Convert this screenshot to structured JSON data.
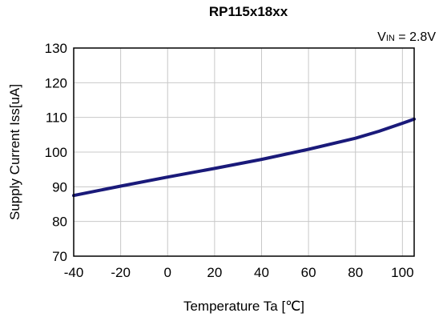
{
  "chart_data": {
    "type": "line",
    "title": "RP115x18xx",
    "condition": {
      "prefix": "V",
      "sub": "IN",
      "rest": " = 2.8V"
    },
    "xlabel": "Temperature Ta [℃]",
    "ylabel": "Supply Current Iss[uA]",
    "xlim": [
      -40,
      105
    ],
    "ylim": [
      70,
      130
    ],
    "xticks": [
      -40,
      -20,
      0,
      20,
      40,
      60,
      80,
      100
    ],
    "yticks": [
      70,
      80,
      90,
      100,
      110,
      120,
      130
    ],
    "grid": true,
    "series": [
      {
        "color": "#1a1a7a",
        "x": [
          -40,
          -20,
          0,
          20,
          40,
          60,
          80,
          90,
          100,
          105
        ],
        "y": [
          87.5,
          90.2,
          92.8,
          95.3,
          97.9,
          100.8,
          104.0,
          106.0,
          108.3,
          109.5
        ]
      }
    ]
  }
}
